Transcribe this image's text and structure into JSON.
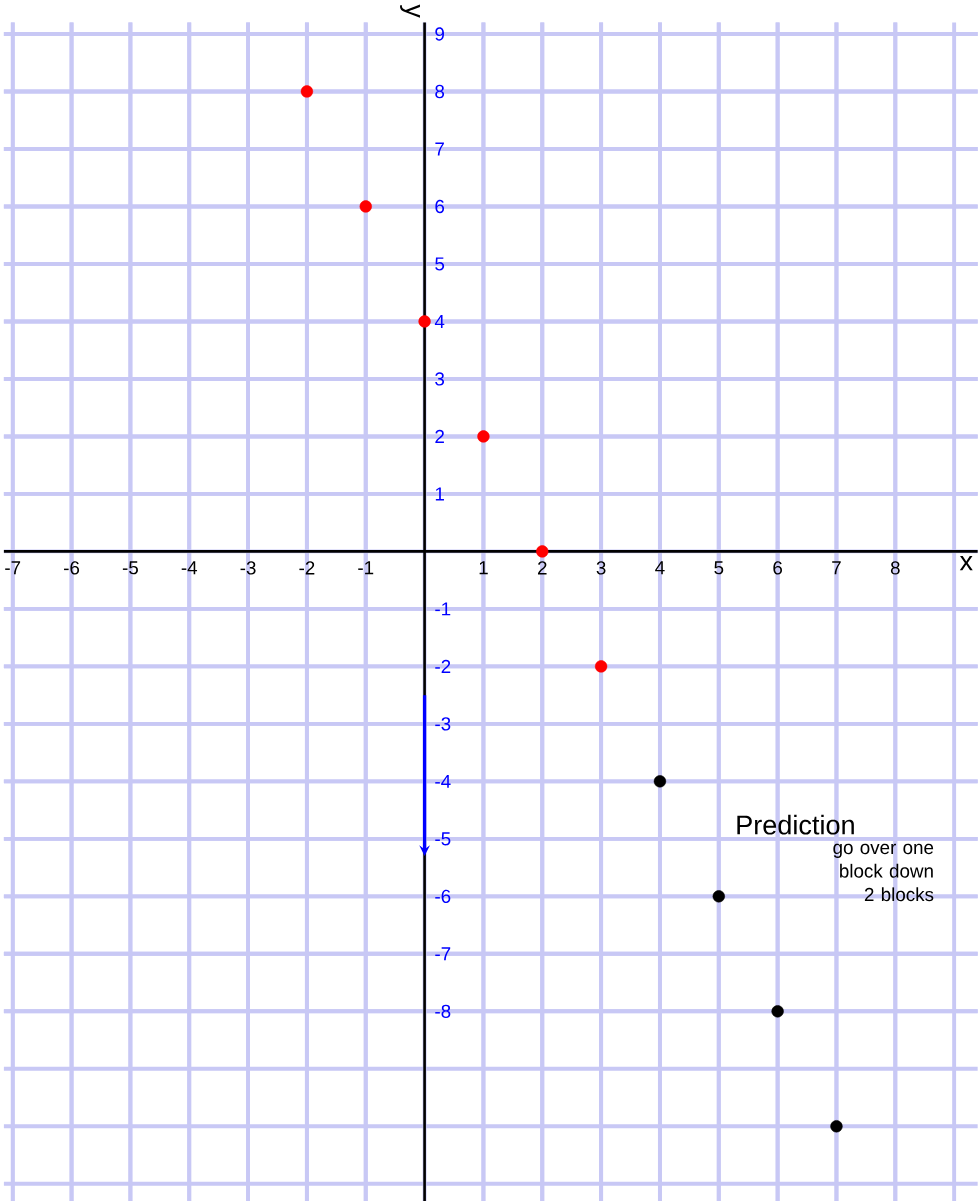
{
  "chart_data": {
    "type": "scatter",
    "xlabel": "x",
    "ylabel": "y",
    "series": [
      {
        "color": "#ff0000",
        "x": [
          -2,
          -1,
          0,
          1,
          2,
          3
        ],
        "values": [
          8,
          6,
          4,
          2,
          0,
          -2
        ]
      },
      {
        "color": "#000000",
        "x": [
          4,
          5,
          6,
          7
        ],
        "values": [
          -4,
          -6,
          -8,
          -10
        ]
      }
    ],
    "xlim": [
      -7.15,
      9.4
    ],
    "ylim": [
      -11.3,
      9.2
    ],
    "xticks": [
      -7,
      -6,
      -5,
      -4,
      -3,
      -2,
      -1,
      1,
      2,
      3,
      4,
      5,
      6,
      7,
      8
    ],
    "yticks": [
      -8,
      -7,
      -6,
      -5,
      -4,
      -3,
      -2,
      -1,
      1,
      2,
      3,
      4,
      5,
      6,
      7,
      8,
      9
    ],
    "grid": true,
    "marker": "circle",
    "annotations": [
      "Prediction",
      "go over one block down 2 blocks"
    ]
  }
}
